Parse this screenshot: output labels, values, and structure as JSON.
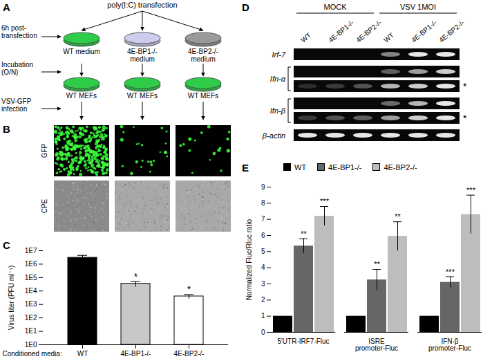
{
  "chart_data": [
    {
      "panel": "C",
      "type": "bar",
      "log": "y",
      "categories": [
        "WT",
        "4E-BP1-/-",
        "4E-BP2-/-"
      ],
      "xlabel": "Conditioned media:",
      "ylabel": "Virus titer (PFU ml⁻¹)",
      "values": [
        3000000,
        35000,
        4000
      ],
      "errors": [
        1500000,
        15000,
        1500
      ],
      "significance": [
        null,
        "*",
        "*"
      ],
      "colors": [
        "#000000",
        "#c8c8c8",
        "#ffffff"
      ],
      "ylim": [
        1,
        10000000
      ],
      "yticks": [
        {
          "value": 1,
          "label": "1E0"
        },
        {
          "value": 10,
          "label": "1E1"
        },
        {
          "value": 100,
          "label": "1E2"
        },
        {
          "value": 1000,
          "label": "1E3"
        },
        {
          "value": 10000,
          "label": "1E4"
        },
        {
          "value": 100000,
          "label": "1E5"
        },
        {
          "value": 1000000,
          "label": "1E6"
        },
        {
          "value": 10000000,
          "label": "1E7"
        }
      ],
      "grid": false
    },
    {
      "panel": "E",
      "type": "bar",
      "categories": [
        "5'UTR-IRF7-Fluc",
        "ISRE promoter-Fluc",
        "IFN-β promoter-Fluc"
      ],
      "ylabel": "Normalized Fluc/Rluc ratio",
      "series": [
        {
          "name": "WT",
          "color": "#000000",
          "values": [
            1,
            1,
            1
          ],
          "errors": [
            null,
            null,
            null
          ],
          "significance": [
            null,
            null,
            null
          ]
        },
        {
          "name": "4E-BP1-/-",
          "color": "#666666",
          "values": [
            5.35,
            3.25,
            3.1
          ],
          "errors": [
            0.45,
            0.65,
            0.35
          ],
          "significance": [
            "**",
            "**",
            "***"
          ]
        },
        {
          "name": "4E-BP2-/-",
          "color": "#bdbdbd",
          "values": [
            7.2,
            5.95,
            7.3
          ],
          "errors": [
            0.6,
            0.9,
            1.2
          ],
          "significance": [
            "***",
            "**",
            "***"
          ]
        }
      ],
      "ylim": [
        0,
        9
      ],
      "yticks": [
        0,
        1,
        2,
        3,
        4,
        5,
        6,
        7,
        8,
        9
      ],
      "legend": "top",
      "grid": false
    }
  ],
  "panel_A": {
    "label": "A",
    "top": "poly(I:C) transfection",
    "steps": [
      "6h post-transfection",
      "Incubation (O/N)",
      "VSV-GFP infection"
    ],
    "media": [
      "WT medium",
      "4E-BP1-/- medium",
      "4E-BP2-/- medium"
    ],
    "colors": [
      "#2fcc4a",
      "#cfcdee",
      "#9a9a9a"
    ],
    "cells": [
      "WT MEFs",
      "WT MEFs",
      "WT MEFs"
    ],
    "cell_color": "#2fcc4a"
  },
  "panel_B": {
    "label": "B",
    "rows": [
      "GFP",
      "CPE"
    ],
    "gfp_fraction": [
      0.55,
      0.04,
      0.03
    ]
  },
  "panel_D": {
    "label": "D",
    "conditions": [
      {
        "label": "MOCK",
        "lanes": [
          "WT",
          "4E-BP1-/-",
          "4E-BP2-/-"
        ]
      },
      {
        "label": "VSV 1MOI",
        "lanes": [
          "WT",
          "4E-BP1-/-",
          "4E-BP2-/-"
        ]
      }
    ],
    "genes": [
      {
        "label": "Irf-7",
        "rows": [
          {
            "bands": [
              0,
              0,
              0,
              0.5,
              0.9,
              0.9
            ]
          }
        ]
      },
      {
        "label": "Ifn-α",
        "rows": [
          {
            "bands": [
              0,
              0,
              0,
              0.35,
              0.6,
              0.8
            ]
          },
          {
            "bands": [
              0.15,
              0.2,
              0.3,
              0.7,
              0.8,
              0.9
            ],
            "mark": "*"
          }
        ]
      },
      {
        "label": "Ifn-β",
        "rows": [
          {
            "bands": [
              0,
              0,
              0,
              0.4,
              0.7,
              0.9
            ]
          },
          {
            "bands": [
              0.2,
              0.3,
              0.35,
              0.6,
              0.8,
              0.9
            ],
            "mark": "*"
          }
        ]
      },
      {
        "label": "β-actin",
        "rows": [
          {
            "bands": [
              0.9,
              0.9,
              0.9,
              0.9,
              0.9,
              0.9
            ]
          }
        ]
      }
    ]
  }
}
